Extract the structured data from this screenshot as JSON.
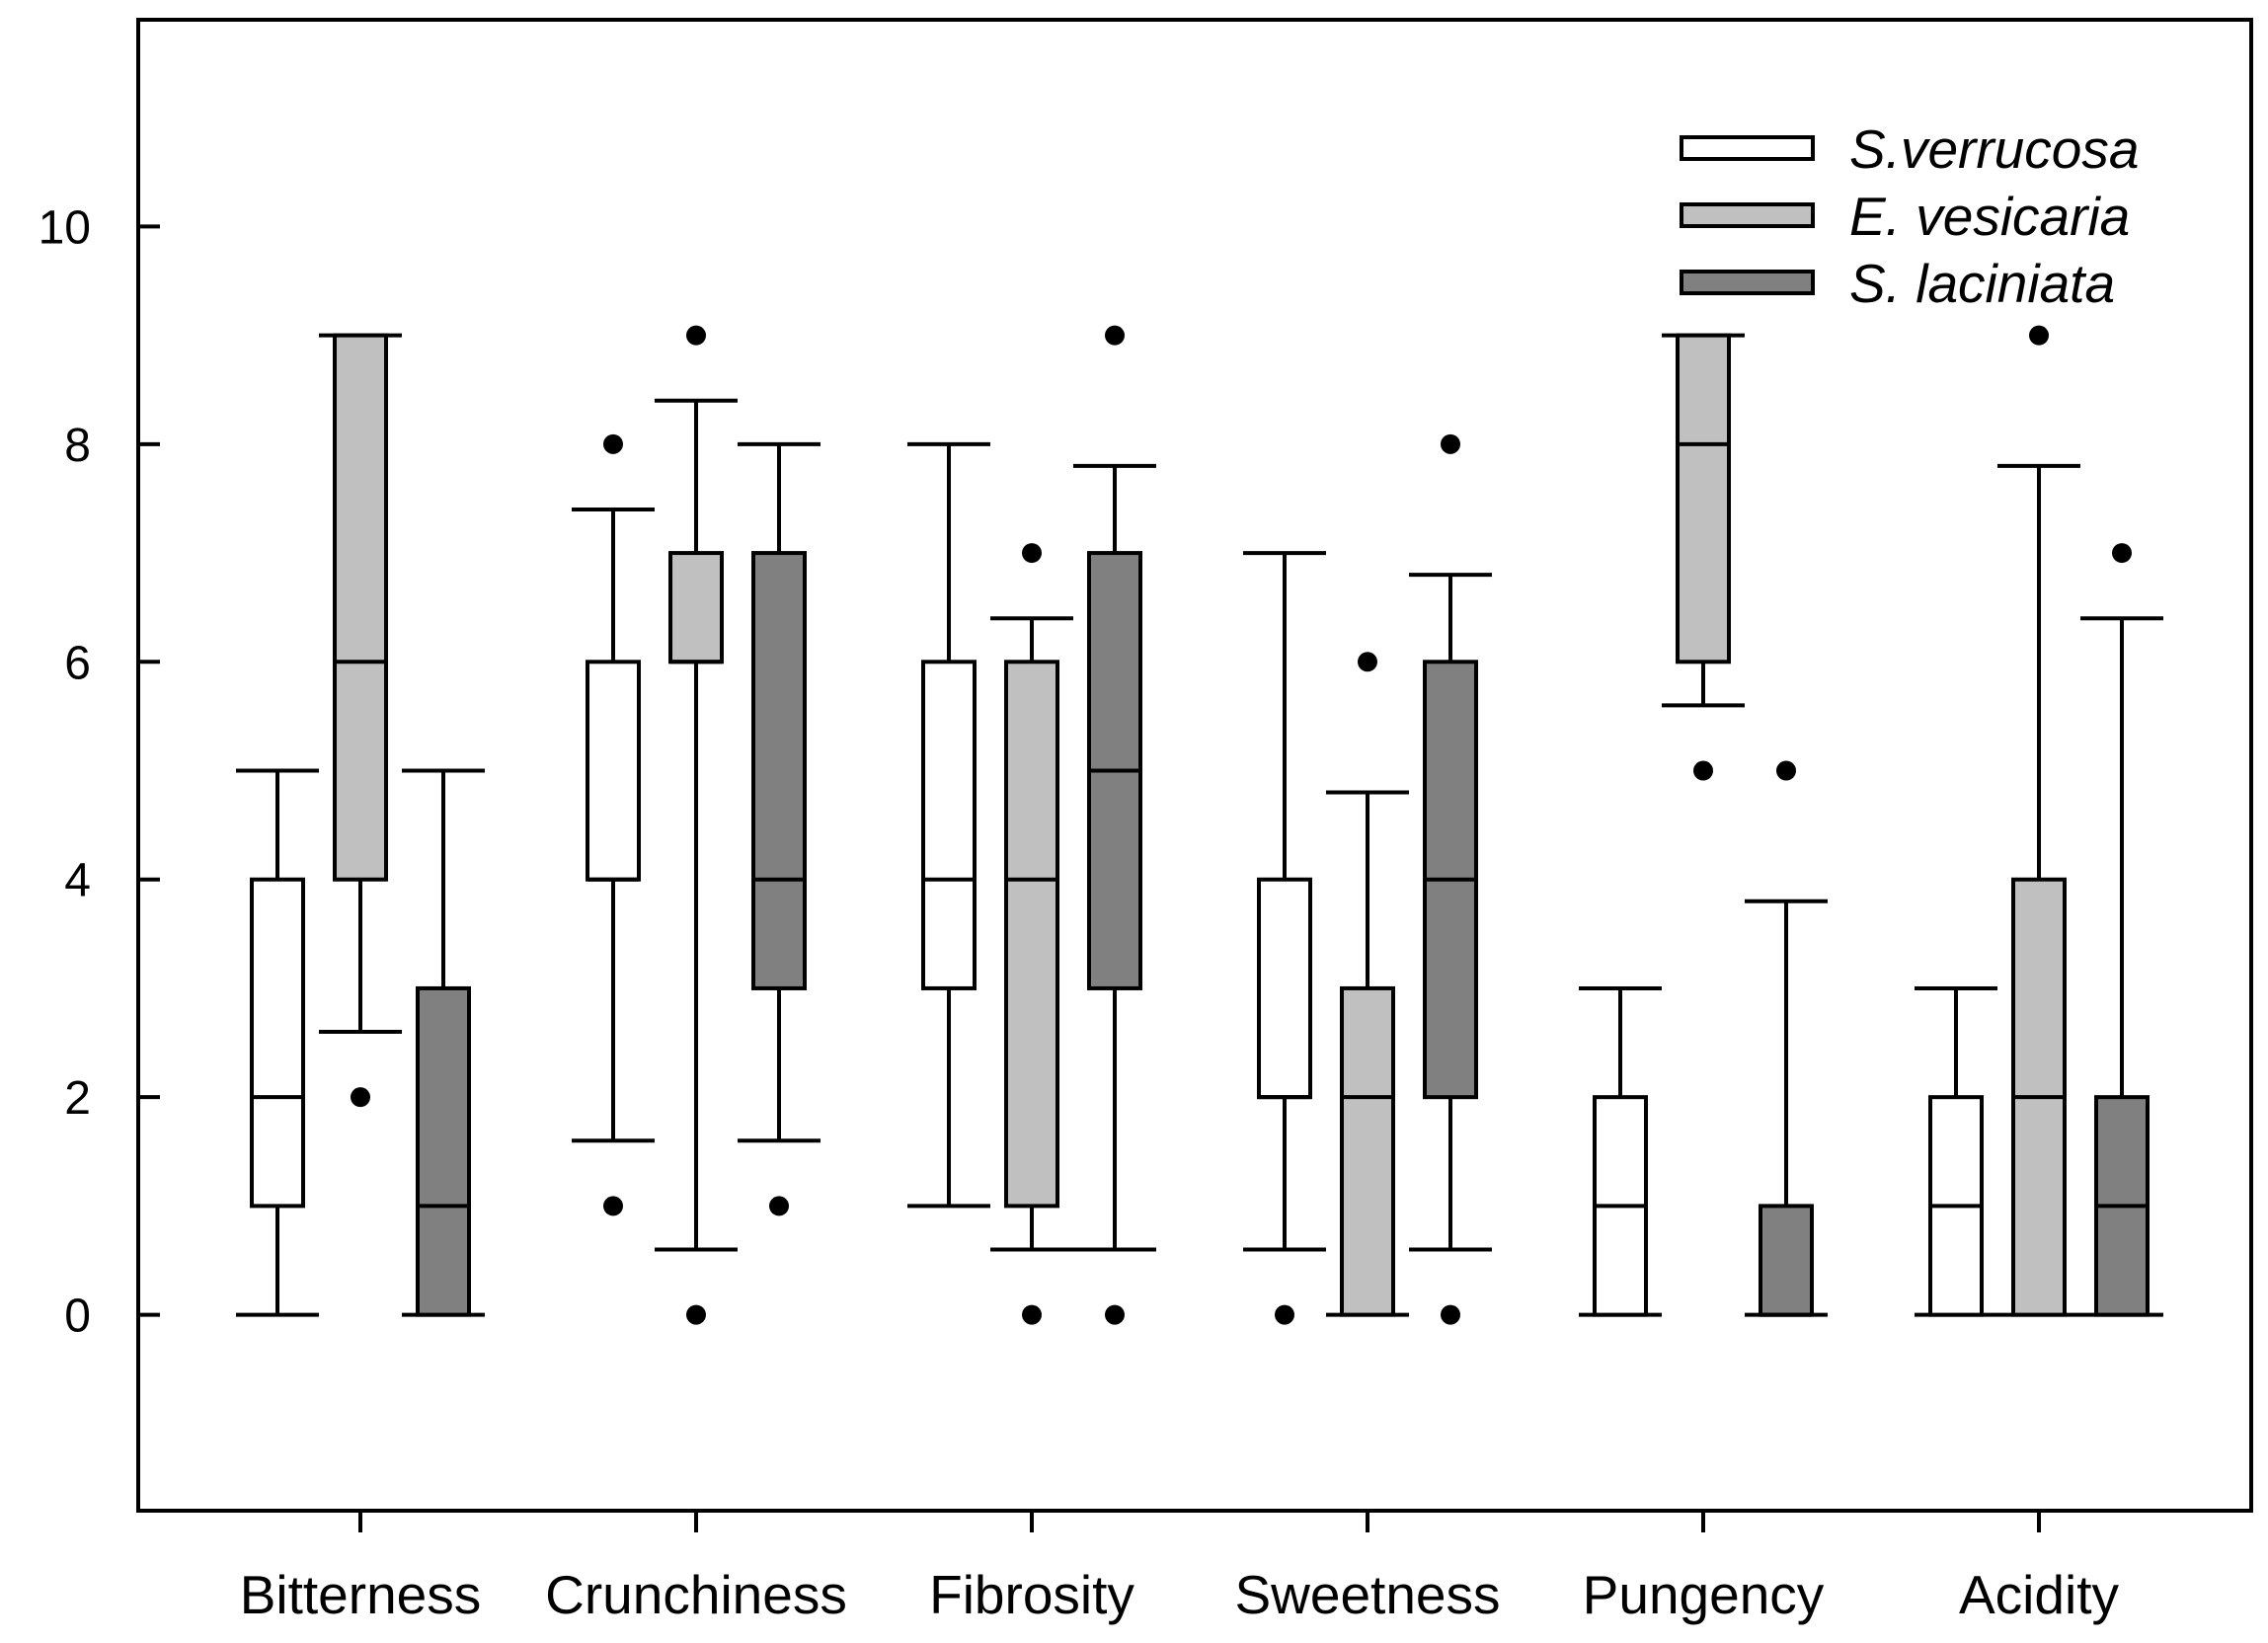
{
  "chart_data": {
    "type": "box",
    "title": "",
    "xlabel": "",
    "ylabel": "",
    "ylim": [
      -1.8,
      11.9
    ],
    "yticks": [
      0,
      2,
      4,
      6,
      8,
      10
    ],
    "categories": [
      "Bitterness",
      "Crunchiness",
      "Fibrosity",
      "Sweetness",
      "Pungency",
      "Acidity"
    ],
    "legend_position": "top-right",
    "series": [
      {
        "name": "S.verrucosa",
        "color": "#ffffff",
        "boxes": [
          {
            "low": 0,
            "q1": 1,
            "median": 2,
            "q3": 4,
            "high": 5,
            "outliers": []
          },
          {
            "low": 1.6,
            "q1": 4,
            "median": 4,
            "q3": 6,
            "high": 7.4,
            "outliers": [
              8,
              1
            ]
          },
          {
            "low": 1,
            "q1": 3,
            "median": 4,
            "q3": 6,
            "high": 8,
            "outliers": []
          },
          {
            "low": 0.6,
            "q1": 2,
            "median": 2,
            "q3": 4,
            "high": 7,
            "outliers": [
              0
            ]
          },
          {
            "low": 0,
            "q1": 0,
            "median": 1,
            "q3": 2,
            "high": 3,
            "outliers": []
          },
          {
            "low": 0,
            "q1": 0,
            "median": 1,
            "q3": 2,
            "high": 3,
            "outliers": []
          }
        ]
      },
      {
        "name": "E. vesicaria",
        "color": "#c0c0c0",
        "boxes": [
          {
            "low": 2.6,
            "q1": 4,
            "median": 6,
            "q3": 9,
            "high": 9,
            "outliers": [
              2
            ]
          },
          {
            "low": 0.6,
            "q1": 6,
            "median": 6,
            "q3": 7,
            "high": 8.4,
            "outliers": [
              9,
              0
            ]
          },
          {
            "low": 0.6,
            "q1": 1,
            "median": 4,
            "q3": 6,
            "high": 6.4,
            "outliers": [
              7,
              0
            ]
          },
          {
            "low": 0,
            "q1": 0,
            "median": 2,
            "q3": 3,
            "high": 4.8,
            "outliers": [
              6
            ]
          },
          {
            "low": 5.6,
            "q1": 6,
            "median": 8,
            "q3": 9,
            "high": 9,
            "outliers": [
              5
            ]
          },
          {
            "low": 0,
            "q1": 0,
            "median": 2,
            "q3": 4,
            "high": 7.8,
            "outliers": [
              9
            ]
          }
        ]
      },
      {
        "name": "S. laciniata",
        "color": "#808080",
        "boxes": [
          {
            "low": 0,
            "q1": 0,
            "median": 1,
            "q3": 3,
            "high": 5,
            "outliers": []
          },
          {
            "low": 1.6,
            "q1": 3,
            "median": 4,
            "q3": 7,
            "high": 8,
            "outliers": [
              1
            ]
          },
          {
            "low": 0.6,
            "q1": 3,
            "median": 5,
            "q3": 7,
            "high": 7.8,
            "outliers": [
              9,
              0
            ]
          },
          {
            "low": 0.6,
            "q1": 2,
            "median": 4,
            "q3": 6,
            "high": 6.8,
            "outliers": [
              8,
              0
            ]
          },
          {
            "low": 0,
            "q1": 0,
            "median": 0,
            "q3": 1,
            "high": 3.8,
            "outliers": [
              5
            ]
          },
          {
            "low": 0,
            "q1": 0,
            "median": 1,
            "q3": 2,
            "high": 6.4,
            "outliers": [
              7
            ]
          }
        ]
      }
    ]
  }
}
